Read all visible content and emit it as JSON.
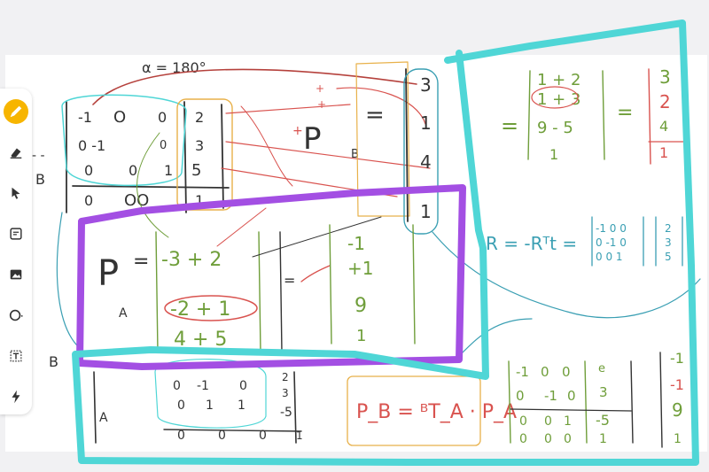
{
  "toolbar": {
    "tools": [
      {
        "id": "pen",
        "icon": "pen-icon",
        "active": true
      },
      {
        "id": "eraser",
        "icon": "eraser-icon"
      },
      {
        "id": "select",
        "icon": "cursor-arrow-icon"
      },
      {
        "id": "note",
        "icon": "sticky-note-icon"
      },
      {
        "id": "image",
        "icon": "image-icon"
      },
      {
        "id": "shapes",
        "icon": "circle-shape-icon"
      },
      {
        "id": "text",
        "icon": "text-box-icon"
      },
      {
        "id": "lightning",
        "icon": "lightning-icon"
      }
    ],
    "accent_color": "#f7b500"
  },
  "colors": {
    "teal": "#4fd6d6",
    "purple": "#a34fe3",
    "red": "#d9534f",
    "green": "#6f9e3a",
    "orange": "#e8b14a",
    "dark": "#333333",
    "blue": "#3a9fb3"
  },
  "canvas": {
    "angle": "α = 180°",
    "p_b_label": "P",
    "p_b_sub": "B",
    "p_a_label": "P",
    "p_a_sub": "A",
    "frame_b": "B",
    "frame_a": "A",
    "frame_b2": "B",
    "matrix1": [
      [
        "-1",
        "0",
        "0",
        "2"
      ],
      [
        "0",
        "-1",
        "0",
        "3"
      ],
      [
        "0",
        "0",
        "1",
        "5"
      ],
      [
        "0",
        "0",
        "0",
        "1"
      ]
    ],
    "matrix2": [
      [
        "-1",
        "0",
        "0",
        "e"
      ],
      [
        "0",
        "-1",
        "0",
        "3"
      ],
      [
        "0",
        "0",
        "1",
        "-5"
      ],
      [
        "0",
        "0",
        "0",
        "1"
      ]
    ],
    "matrix3": [
      [
        "0",
        "-1",
        "0"
      ],
      [
        "0",
        "1",
        "1"
      ],
      [
        "0",
        "0",
        "0"
      ]
    ],
    "eq_sign": "=",
    "col_pb": [
      "3",
      "1",
      "4",
      "1"
    ],
    "pa_entries": [
      "-3 + 2",
      "-2 + 1",
      "4 + 5"
    ],
    "col_pa": [
      "-1",
      "+1",
      "9",
      "1"
    ],
    "result_entries": [
      "1 + 2",
      "1 + 3",
      "9 - 5",
      "1"
    ],
    "col_result": [
      "3",
      "2",
      "4",
      "1"
    ],
    "translation_expr": "R = -Rᵀt =",
    "rot_matrix": [
      [
        "-1",
        "0",
        "0"
      ],
      [
        "0",
        "-1",
        "0"
      ],
      [
        "0",
        "0",
        "1"
      ]
    ],
    "t_vector": [
      "2",
      "3",
      "5"
    ],
    "transform_eq": "P_B = ᴮT_A · P_A",
    "col_final": [
      "-1",
      "-1",
      "9",
      "1"
    ],
    "plus_marks": [
      "+",
      "+"
    ]
  }
}
